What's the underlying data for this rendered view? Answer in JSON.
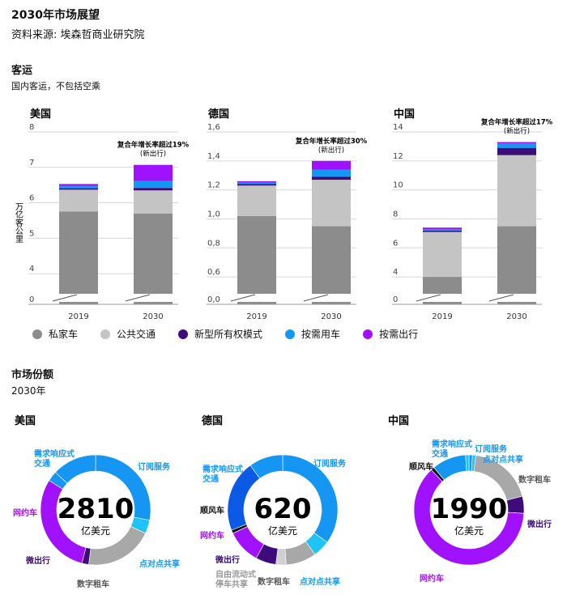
{
  "header": {
    "title": "2030年市场展望",
    "source": "资料来源: 埃森哲商业研究院"
  },
  "section1": {
    "title": "客运",
    "note": "国内客运，不包括空乘",
    "ylabel": "万亿客公里"
  },
  "section2": {
    "title": "市场份额",
    "note": "2030年"
  },
  "colors": {
    "private": "#8c8c8c",
    "public": "#c4c4c4",
    "ownership": "#3b0c7a",
    "ondemand_car": "#1596f2",
    "ondemand_mobility": "#a011ff"
  },
  "legend": [
    {
      "label": "私家车",
      "color": "#8c8c8c"
    },
    {
      "label": "公共交通",
      "color": "#c4c4c4"
    },
    {
      "label": "新型所有权模式",
      "color": "#3b0c7a"
    },
    {
      "label": "按需用车",
      "color": "#1596f2"
    },
    {
      "label": "按需出行",
      "color": "#a011ff"
    }
  ],
  "chart_data": [
    {
      "type": "bar",
      "stacked": true,
      "title": "美国",
      "categories": [
        "2019",
        "2030"
      ],
      "yticks": [
        {
          "v": 0,
          "label": "0"
        },
        {
          "v": 4,
          "label": "4"
        },
        {
          "v": 5,
          "label": "5"
        },
        {
          "v": 6,
          "label": "6"
        },
        {
          "v": 7,
          "label": "7"
        },
        {
          "v": 8,
          "label": "8"
        }
      ],
      "ylim": [
        3.5,
        8
      ],
      "axis_break": true,
      "annotation": {
        "text": "复合年增长率超过19%",
        "sub": "(新出行)"
      },
      "series": [
        {
          "name": "私家车",
          "values": [
            5.75,
            5.7
          ]
        },
        {
          "name": "公共交通",
          "values": [
            0.62,
            0.65
          ]
        },
        {
          "name": "新型所有权模式",
          "values": [
            0.04,
            0.07
          ]
        },
        {
          "name": "按需用车",
          "values": [
            0.07,
            0.2
          ]
        },
        {
          "name": "按需出行",
          "values": [
            0.05,
            0.45
          ]
        }
      ]
    },
    {
      "type": "bar",
      "stacked": true,
      "title": "德国",
      "categories": [
        "2019",
        "2030"
      ],
      "yticks": [
        {
          "v": 0,
          "label": "0,0"
        },
        {
          "v": 0.6,
          "label": "0,6"
        },
        {
          "v": 0.8,
          "label": "0,8"
        },
        {
          "v": 1.0,
          "label": "1,0"
        },
        {
          "v": 1.2,
          "label": "1,2"
        },
        {
          "v": 1.4,
          "label": "1,4"
        },
        {
          "v": 1.6,
          "label": "1,6"
        }
      ],
      "ylim": [
        0.5,
        1.6
      ],
      "axis_break": true,
      "annotation": {
        "text": "复合年增长率超过30%",
        "sub": "(新出行)"
      },
      "series": [
        {
          "name": "私家车",
          "values": [
            1.02,
            0.95
          ]
        },
        {
          "name": "公共交通",
          "values": [
            0.21,
            0.32
          ]
        },
        {
          "name": "新型所有权模式",
          "values": [
            0.01,
            0.02
          ]
        },
        {
          "name": "按需用车",
          "values": [
            0.01,
            0.05
          ]
        },
        {
          "name": "按需出行",
          "values": [
            0.01,
            0.06
          ]
        }
      ]
    },
    {
      "type": "bar",
      "stacked": true,
      "title": "中国",
      "categories": [
        "2019",
        "2030"
      ],
      "yticks": [
        {
          "v": 0,
          "label": "0"
        },
        {
          "v": 4,
          "label": "4"
        },
        {
          "v": 6,
          "label": "6"
        },
        {
          "v": 8,
          "label": "8"
        },
        {
          "v": 10,
          "label": "10"
        },
        {
          "v": 12,
          "label": "12"
        },
        {
          "v": 14,
          "label": "14"
        }
      ],
      "ylim": [
        3,
        14
      ],
      "axis_break": true,
      "annotation": {
        "text": "复合年增长率超过17%",
        "sub": "(新出行)"
      },
      "series": [
        {
          "name": "私家车",
          "values": [
            4.0,
            7.5
          ]
        },
        {
          "name": "公共交通",
          "values": [
            3.1,
            4.9
          ]
        },
        {
          "name": "新型所有权模式",
          "values": [
            0.1,
            0.5
          ]
        },
        {
          "name": "按需用车",
          "values": [
            0.1,
            0.3
          ]
        },
        {
          "name": "按需出行",
          "values": [
            0.1,
            0.1
          ]
        }
      ]
    },
    {
      "type": "pie",
      "donut": true,
      "title": "美国",
      "total": "2810",
      "unit": "亿美元",
      "slices": [
        {
          "label": "订阅服务",
          "value": 28,
          "color": "#1596f2"
        },
        {
          "label": "点对点共享",
          "value": 4,
          "color": "#20c3f5"
        },
        {
          "label": "数字租车",
          "value": 20,
          "color": "#a8a8a8"
        },
        {
          "label": "微出行",
          "value": 2,
          "color": "#3b0c7a"
        },
        {
          "label": "网约车",
          "value": 30,
          "color": "#a011ff"
        },
        {
          "label": "需求响应式交通",
          "value": 3,
          "color": "#1596f2"
        },
        {
          "label": "",
          "value": 13,
          "color": "#1596f2"
        }
      ]
    },
    {
      "type": "pie",
      "donut": true,
      "title": "德国",
      "total": "620",
      "unit": "亿美元",
      "slices": [
        {
          "label": "订阅服务",
          "value": 35,
          "color": "#1596f2"
        },
        {
          "label": "点对点共享",
          "value": 5,
          "color": "#20c3f5"
        },
        {
          "label": "数字租车",
          "value": 9,
          "color": "#a8a8a8"
        },
        {
          "label": "自由流动式停车共享",
          "value": 3,
          "color": "#d0d0d0"
        },
        {
          "label": "微出行",
          "value": 6,
          "color": "#3b0c7a"
        },
        {
          "label": "网约车",
          "value": 10,
          "color": "#a011ff"
        },
        {
          "label": "顺风车",
          "value": 1,
          "color": "#111111"
        },
        {
          "label": "需求响应式交通",
          "value": 21,
          "color": "#0a5ae6"
        },
        {
          "label": "",
          "value": 10,
          "color": "#1596f2"
        }
      ]
    },
    {
      "type": "pie",
      "donut": true,
      "title": "中国",
      "total": "1990",
      "unit": "亿美元",
      "slices": [
        {
          "label": "订阅服务",
          "value": 1,
          "color": "#1596f2"
        },
        {
          "label": "点对点共享",
          "value": 1,
          "color": "#20c3f5"
        },
        {
          "label": "数字租车",
          "value": 19,
          "color": "#a8a8a8"
        },
        {
          "label": "微出行",
          "value": 5,
          "color": "#3b0c7a"
        },
        {
          "label": "网约车",
          "value": 62,
          "color": "#a011ff"
        },
        {
          "label": "顺风车",
          "value": 1,
          "color": "#111111"
        },
        {
          "label": "需求响应式交通",
          "value": 10,
          "color": "#1596f2"
        },
        {
          "label": "",
          "value": 1,
          "color": "#20c3f5"
        }
      ]
    }
  ]
}
